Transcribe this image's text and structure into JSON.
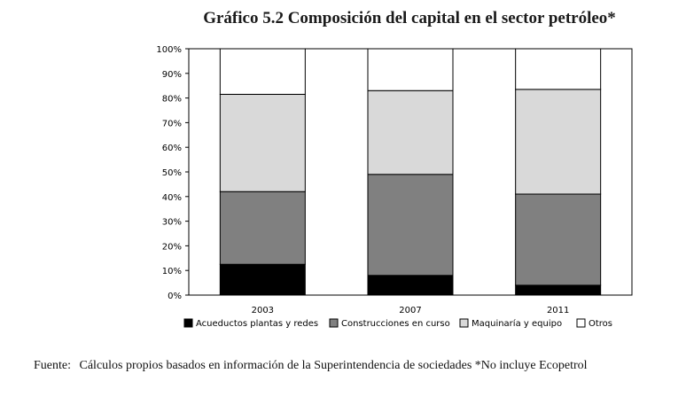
{
  "chart_data": {
    "type": "bar",
    "stacked": true,
    "title": "Gráfico 5.2 Composición del capital en el sector petróleo*",
    "categories": [
      "2003",
      "2007",
      "2011"
    ],
    "series": [
      {
        "name": "Acueductos plantas y redes",
        "color": "#000000",
        "values": [
          12.5,
          8.0,
          4.0
        ]
      },
      {
        "name": "Construcciones en curso",
        "color": "#808080",
        "values": [
          29.5,
          41.0,
          37.0
        ]
      },
      {
        "name": "Maquinaría y equipo",
        "color": "#d9d9d9",
        "values": [
          39.5,
          34.0,
          42.5
        ]
      },
      {
        "name": "Otros",
        "color": "#ffffff",
        "values": [
          18.5,
          17.0,
          16.5
        ]
      }
    ],
    "ylim": [
      0,
      100
    ],
    "yticks": [
      "0%",
      "10%",
      "20%",
      "30%",
      "40%",
      "50%",
      "60%",
      "70%",
      "80%",
      "90%",
      "100%"
    ],
    "xlabel": "",
    "ylabel": "",
    "legend": "bottom",
    "grid": false
  },
  "source": {
    "label": "Fuente:",
    "text": "Cálculos propios basados en información de la Superintendencia de sociedades *No incluye Ecopetrol"
  }
}
